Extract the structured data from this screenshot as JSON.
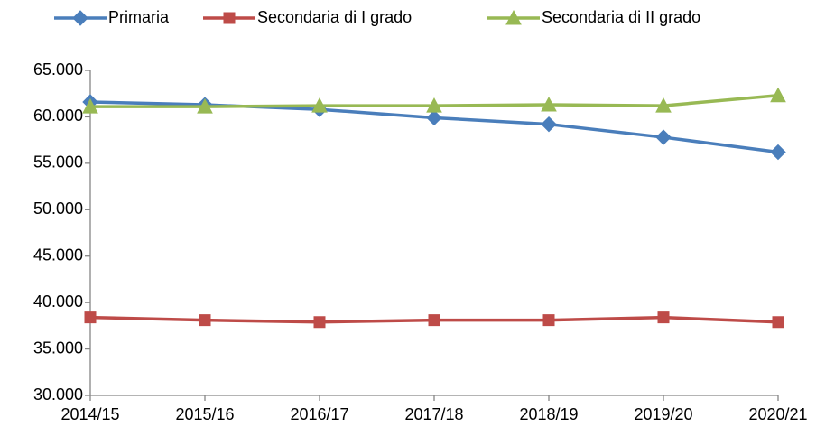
{
  "chart_data": {
    "type": "line",
    "categories": [
      "2014/15",
      "2015/16",
      "2016/17",
      "2017/18",
      "2018/19",
      "2019/20",
      "2020/21"
    ],
    "series": [
      {
        "name": "Primaria",
        "color": "#4a7ebb",
        "marker": "diamond",
        "values": [
          61600,
          61300,
          60800,
          59900,
          59200,
          57800,
          56200
        ]
      },
      {
        "name": "Secondaria di I grado",
        "color": "#be4b48",
        "marker": "square",
        "values": [
          38400,
          38100,
          37900,
          38100,
          38100,
          38400,
          37900
        ]
      },
      {
        "name": "Secondaria di II grado",
        "color": "#98b954",
        "marker": "triangle",
        "values": [
          61100,
          61100,
          61200,
          61200,
          61300,
          61200,
          62300
        ]
      }
    ],
    "ylim": [
      30000,
      65000
    ],
    "yticks": [
      {
        "value": 30000,
        "label": "30.000"
      },
      {
        "value": 35000,
        "label": "35.000"
      },
      {
        "value": 40000,
        "label": "40.000"
      },
      {
        "value": 45000,
        "label": "45.000"
      },
      {
        "value": 50000,
        "label": "50.000"
      },
      {
        "value": 55000,
        "label": "55.000"
      },
      {
        "value": 60000,
        "label": "60.000"
      },
      {
        "value": 65000,
        "label": "65.000"
      }
    ],
    "legend": "top",
    "grid": false
  }
}
